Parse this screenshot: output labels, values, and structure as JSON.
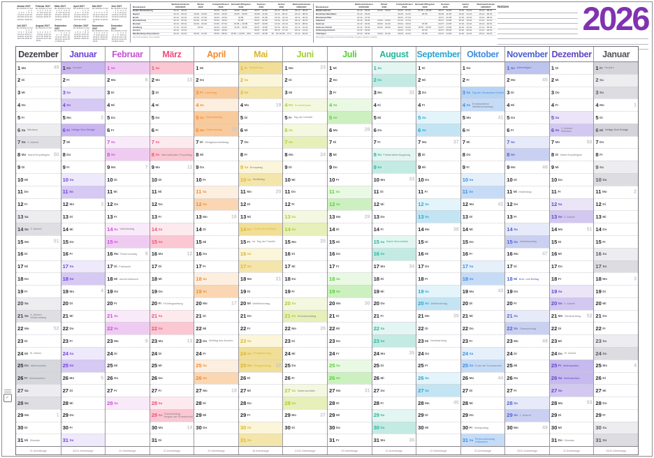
{
  "page": {
    "year": "2026",
    "year_color": "#8033b0",
    "notes_label": "Notizen"
  },
  "weekdays": [
    "Mo",
    "Di",
    "Mi",
    "Do",
    "Fr",
    "Sa",
    "So"
  ],
  "mini_calendars": {
    "year": "2027",
    "weekday_header": [
      "Mo",
      "Di",
      "Mi",
      "Do",
      "Fr",
      "Sa",
      "So"
    ],
    "months": [
      {
        "title": "Januar 2027",
        "start": 4,
        "days": 31
      },
      {
        "title": "Februar 2027",
        "start": 0,
        "days": 28
      },
      {
        "title": "März 2027",
        "start": 0,
        "days": 31
      },
      {
        "title": "April 2027",
        "start": 3,
        "days": 30
      },
      {
        "title": "Mai 2027",
        "start": 5,
        "days": 31
      },
      {
        "title": "Juni 2027",
        "start": 1,
        "days": 30
      },
      {
        "title": "Juli 2027",
        "start": 3,
        "days": 31
      },
      {
        "title": "August 2027",
        "start": 6,
        "days": 31
      },
      {
        "title": "September 2027",
        "start": 2,
        "days": 30
      },
      {
        "title": "Oktober 2027",
        "start": 4,
        "days": 31
      },
      {
        "title": "November 2027",
        "start": 0,
        "days": 30
      },
      {
        "title": "Dezember 2027",
        "start": 2,
        "days": 31
      }
    ]
  },
  "holiday_table": {
    "headers": [
      "Bundesland",
      "Weihnachtsferien\n2025/2026",
      "Winter\n2026",
      "Frühjahr/Ostern\n2026",
      "Himmelf./Pfingsten\n2026",
      "Sommer\n2026",
      "Herbst\n2026",
      "Weihnachtsferien\n2026/2027"
    ],
    "left_rows": [
      [
        "Baden-Württemberg",
        "22.12. - 05.01.",
        "-",
        "30.03. - 11.04.",
        "26.05. - 05.06.",
        "30.07. - 12.09.",
        "26.10. - 30.10.",
        "23.12. - 09.01."
      ],
      [
        "Bayern",
        "22.12. - 05.01.",
        "16.02. - 20.02.",
        "30.03. - 10.04.",
        "26.05. - 05.06.",
        "03.08. - 14.09.",
        "02.11. - 06.11.",
        "24.12. - 08.01."
      ],
      [
        "Berlin",
        "22.12. - 02.01.",
        "02.02. - 07.02.",
        "30.03. - 10.04.",
        "15.05.",
        "09.07. - 21.08.",
        "19.10. - 31.10.",
        "23.12. - 02.01."
      ],
      [
        "Brandenburg",
        "22.12. - 02.01.",
        "02.02. - 07.02.",
        "30.03. - 10.04.",
        "15.05.",
        "09.07. - 22.08.",
        "19.10. - 31.10.",
        "23.12. - 02.01."
      ],
      [
        "Bremen",
        "22.12. - 05.01.",
        "02.02. - 03.02.",
        "23.03. - 07.04.",
        "15.05. + 26.05.",
        "09.07. - 19.08.",
        "12.10. - 24.10.",
        "23.12. - 08.01."
      ],
      [
        "Hamburg",
        "17.12. - 02.01.",
        "30.01.",
        "02.03. - 13.03.",
        "11.05. - 15.05.",
        "09.07. - 19.08.",
        "19.10. - 30.10.",
        "21.12. - 01.01."
      ],
      [
        "Hessen",
        "22.12. - 10.01.",
        "-",
        "30.03. - 10.04.",
        "-",
        "06.07. - 14.08.",
        "05.10. - 17.10.",
        "23.12. - 12.01."
      ],
      [
        "Mecklenburg-Vorpommern",
        "22.12. - 02.01.",
        "09.02. - 21.02.",
        "30.03. - 08.04.",
        "15.05. + 22.05. - 26.05.",
        "13.07. - 22.08.",
        "19. - 24.10./26. - 27.11.",
        "21.12. - 02.01."
      ]
    ],
    "right_rows": [
      [
        "Niedersachsen",
        "22.12. - 05.01.",
        "02.02. - 03.02.",
        "23.03. - 07.04.",
        "15.05. + 26.05.",
        "09.07. - 19.08.",
        "12.10. - 24.10.",
        "23.12. - 08.01."
      ],
      [
        "Nordrhein-Westfalen",
        "22.12. - 06.01.",
        "-",
        "30.03. - 11.04.",
        "26.05.",
        "29.06. - 11.08.",
        "19.10. - 31.10.",
        "23.12. - 06.01."
      ],
      [
        "Rheinland-Pfalz",
        "22.12. - 07.01.",
        "-",
        "30.03. - 07.04.",
        "-",
        "13.07. - 21.08.",
        "12.10. - 23.10.",
        "23.12. - 08.01."
      ],
      [
        "Saarland",
        "22.12. - 02.01.",
        "16.02. - 20.02.",
        "07.04. - 17.04.",
        "-",
        "06.07. - 14.08.",
        "05.10. - 16.10.",
        "21.12. - 31.12."
      ],
      [
        "Sachsen",
        "22.12. - 02.01.",
        "09.02. - 21.02.",
        "03.04. - 10.04.",
        "15.05.",
        "04.07. - 14.08.",
        "12.10. - 24.10.",
        "23.12. - 02.01."
      ],
      [
        "Sachsen-Anhalt",
        "22.12. - 05.01.",
        "02.02. - 06.02.",
        "30.03. - 04.04.",
        "15.05. - 22.05.",
        "04.07. - 14.08.",
        "19.10. - 24.10.",
        "21.12. - 05.01."
      ],
      [
        "Schleswig-Holstein",
        "19.12. - 06.01.",
        "-",
        "03.04. - 17.04.",
        "15.05.",
        "20.07. - 29.08.",
        "19.10. - 30.10.",
        "21.12. - 06.01."
      ],
      [
        "Thüringen",
        "22.12. - 03.01.",
        "16.02. - 21.02.",
        "30.03. - 11.04.",
        "15.05.",
        "04.07. - 14.08.",
        "12.10. - 24.10.",
        "23.12. - 02.01."
      ]
    ],
    "footnote_left": "Alle Ferienangaben ohne Gewähr.",
    "footnote_right": "Bewegliche Ferientage sind nicht berücksichtigt. Angaben teilweise vorläufig."
  },
  "calendar": {
    "months": [
      {
        "name": "Dezember",
        "accent": "#3e3e46",
        "sat": "#ededf0",
        "sun": "#dedee3",
        "hol": "#d6d6dd",
        "start": 1,
        "days": 31,
        "weeks": {
          "1": 49,
          "8": 50,
          "15": 51,
          "22": 52,
          "29": 1
        },
        "notes": {
          "6": "Nikolaus",
          "7": "2. Advent",
          "8": "Mariä Empfängnis",
          "14": "3. Advent",
          "21": "4. Advent\nWinteranfang",
          "24": "Hl. Abend",
          "25": "Weihnachten",
          "26": "Weihnachten",
          "31": "Silvester"
        },
        "shade": {
          "25": "hol",
          "26": "hol"
        },
        "colored": [],
        "note_colored": [],
        "work": "21 Arbeitstage"
      },
      {
        "name": "Januar",
        "accent": "#6d43d8",
        "sat": "#efeafb",
        "sun": "#d6c9f3",
        "hol": "#c9b6ef",
        "start": 4,
        "days": 31,
        "weeks": {
          "5": 2,
          "12": 3,
          "19": 4,
          "26": 5
        },
        "notes": {
          "1": "Neujahr",
          "6": "Heilige Drei Könige"
        },
        "shade": {
          "1": "hol",
          "6": "hol"
        },
        "colored": [
          6
        ],
        "note_colored": [
          6
        ],
        "work": "20/21 Arbeitstage"
      },
      {
        "name": "Februar",
        "accent": "#c84fd4",
        "sat": "#f9eafa",
        "sun": "#efcbf2",
        "hol": "#eabdee",
        "start": 7,
        "days": 28,
        "weeks": {
          "2": 6,
          "9": 7,
          "16": 8,
          "23": 9
        },
        "notes": {
          "14": "Valentinstag",
          "16": "Rosenmontag",
          "17": "Fastnacht",
          "18": "Aschermittwoch"
        },
        "shade": {},
        "colored": [],
        "note_colored": [],
        "work": "20 Arbeitstage"
      },
      {
        "name": "März",
        "accent": "#ee4e7c",
        "sat": "#fdeaef",
        "sun": "#fac7d3",
        "hol": "#f8b9c9",
        "start": 7,
        "days": 31,
        "weeks": {
          "2": 10,
          "9": 11,
          "16": 12,
          "23": 13,
          "30": 14
        },
        "notes": {
          "8": "Internationaler Frauentag",
          "20": "Frühlingsanfang",
          "29": "Palmsonntag\nBeginn der Sommerzeit"
        },
        "shade": {},
        "colored": [],
        "note_colored": [],
        "work": "22 Arbeitstage"
      },
      {
        "name": "April",
        "accent": "#f28a2e",
        "sat": "#fdefe0",
        "sun": "#fad7b2",
        "hol": "#f8ca9c",
        "start": 3,
        "days": 30,
        "weeks": {
          "6": 15,
          "13": 16,
          "20": 17,
          "27": 18
        },
        "notes": {
          "3": "Karfreitag",
          "5": "Ostersonntag",
          "6": "Ostermontag",
          "7": "Weltgesundheitstag",
          "23": "Welttag des Buches"
        },
        "shade": {
          "3": "hol",
          "5": "hol",
          "6": "hol"
        },
        "colored": [
          3,
          6
        ],
        "note_colored": [
          3,
          5,
          6
        ],
        "work": "20 Arbeitstage"
      },
      {
        "name": "Mai",
        "accent": "#dcb52a",
        "sat": "#fbf5da",
        "sun": "#f4e5ab",
        "hol": "#f1de97",
        "start": 5,
        "days": 31,
        "weeks": {
          "4": 19,
          "11": 20,
          "18": 21,
          "25": 22
        },
        "notes": {
          "1": "Maifeiertag",
          "9": "Europatag",
          "10": "Muttertag",
          "14": "Christi Himmelfahrt",
          "15": "Int. Tag der Familie",
          "20": "Weltbienentag",
          "24": "Pfingstsonntag",
          "25": "Pfingstmontag"
        },
        "shade": {
          "1": "hol",
          "14": "hol",
          "24": "hol",
          "25": "hol"
        },
        "colored": [
          1,
          14,
          25
        ],
        "note_colored": [
          1,
          14,
          24,
          25
        ],
        "work": "18 Arbeitstage"
      },
      {
        "name": "Juni",
        "accent": "#a6cc32",
        "sat": "#f5f8e0",
        "sun": "#e7f0b8",
        "hol": "#e1eda8",
        "start": 1,
        "days": 30,
        "weeks": {
          "1": 23,
          "8": 24,
          "15": 25,
          "22": 26,
          "29": 27
        },
        "notes": {
          "4": "Fronleichnam",
          "5": "Tag der Umwelt",
          "21": "Sommeranfang",
          "27": "Siebenschläfer"
        },
        "shade": {
          "4": "sat"
        },
        "colored": [
          4
        ],
        "note_colored": [
          4
        ],
        "work": "21/22 Arbeitstage"
      },
      {
        "name": "Juli",
        "accent": "#58cc3c",
        "sat": "#eaf9e3",
        "sun": "#cdf0c0",
        "hol": "#c1edb1",
        "start": 3,
        "days": 31,
        "weeks": {
          "6": 28,
          "13": 29,
          "20": 30,
          "27": 31
        },
        "notes": {},
        "shade": {},
        "colored": [],
        "note_colored": [],
        "work": "23 Arbeitstage"
      },
      {
        "name": "August",
        "accent": "#26b49e",
        "sat": "#e3f6f2",
        "sun": "#c3ebe3",
        "hol": "#b4e7dd",
        "start": 6,
        "days": 31,
        "weeks": {
          "3": 32,
          "10": 33,
          "17": 34,
          "24": 35,
          "31": 36
        },
        "notes": {
          "8": "Friedensfest Augsburg",
          "15": "Mariä Himmelfahrt"
        },
        "shade": {},
        "colored": [],
        "note_colored": [
          15
        ],
        "work": "21 Arbeitstage"
      },
      {
        "name": "September",
        "accent": "#2aa4d2",
        "sat": "#e3f4fa",
        "sun": "#c3e5f3",
        "hol": "#b4dff1",
        "start": 2,
        "days": 30,
        "weeks": {
          "7": 37,
          "14": 38,
          "21": 39,
          "28": 40
        },
        "notes": {
          "20": "Weltkindertag",
          "23": "Herbstanfang"
        },
        "shade": {},
        "colored": [],
        "note_colored": [],
        "work": "22 Arbeitstage"
      },
      {
        "name": "Oktober",
        "accent": "#3c8ce0",
        "sat": "#e5f0fb",
        "sun": "#c6dcf6",
        "hol": "#b8d4f4",
        "start": 4,
        "days": 31,
        "weeks": {
          "5": 41,
          "12": 42,
          "19": 43,
          "26": 44
        },
        "notes": {
          "3": "Tag der Deutschen Einheit",
          "4": "Erntedankfest\nWelttierschutztag",
          "25": "Ende der Sommerzeit",
          "30": "Weltspartag",
          "31": "Reformationstag\nHalloween"
        },
        "shade": {
          "3": "hol",
          "31": "sun"
        },
        "colored": [
          3,
          31
        ],
        "note_colored": [
          3,
          31
        ],
        "work": "22 Arbeitstage"
      },
      {
        "name": "November",
        "accent": "#4e60cc",
        "sat": "#e7eaf8",
        "sun": "#cad0f1",
        "hol": "#bdc5ee",
        "start": 7,
        "days": 30,
        "weeks": {
          "2": 45,
          "9": 46,
          "16": 47,
          "23": 48,
          "30": 49
        },
        "notes": {
          "1": "Allerheiligen",
          "11": "Martinstag",
          "15": "Volkstrauertag",
          "18": "Buß- und Bettag",
          "22": "Totensonntag",
          "29": "1. Advent"
        },
        "shade": {
          "1": "hol"
        },
        "colored": [
          1,
          18
        ],
        "note_colored": [
          1,
          18
        ],
        "work": "20/21 Arbeitstage"
      },
      {
        "name": "Dezember",
        "accent": "#5f45c2",
        "sat": "#eae6f8",
        "sun": "#d2c8f1",
        "hol": "#c6baee",
        "start": 2,
        "days": 31,
        "weeks": {
          "7": 50,
          "14": 51,
          "21": 52,
          "28": 53
        },
        "notes": {
          "6": "2. Advent\nNikolaus",
          "8": "Mariä Empfängnis",
          "13": "3. Advent",
          "20": "4. Advent",
          "21": "Winteranfang",
          "24": "Hl. Abend",
          "25": "Weihnachten",
          "26": "Weihnachten",
          "31": "Silvester"
        },
        "shade": {
          "25": "hol",
          "26": "hol"
        },
        "colored": [
          25
        ],
        "note_colored": [
          25,
          26
        ],
        "work": "22 Arbeitstage"
      },
      {
        "name": "Januar",
        "accent": "#53535b",
        "sat": "#ededf0",
        "sun": "#dcdce1",
        "hol": "#d4d4da",
        "start": 5,
        "days": 31,
        "weeks": {
          "4": 1,
          "11": 2,
          "18": 3,
          "25": 4
        },
        "notes": {
          "1": "Neujahr",
          "6": "Heilige Drei Könige"
        },
        "shade": {
          "1": "hol",
          "6": "hol"
        },
        "colored": [
          6
        ],
        "note_colored": [
          6
        ],
        "work": "19/20 Arbeitstage"
      }
    ]
  }
}
